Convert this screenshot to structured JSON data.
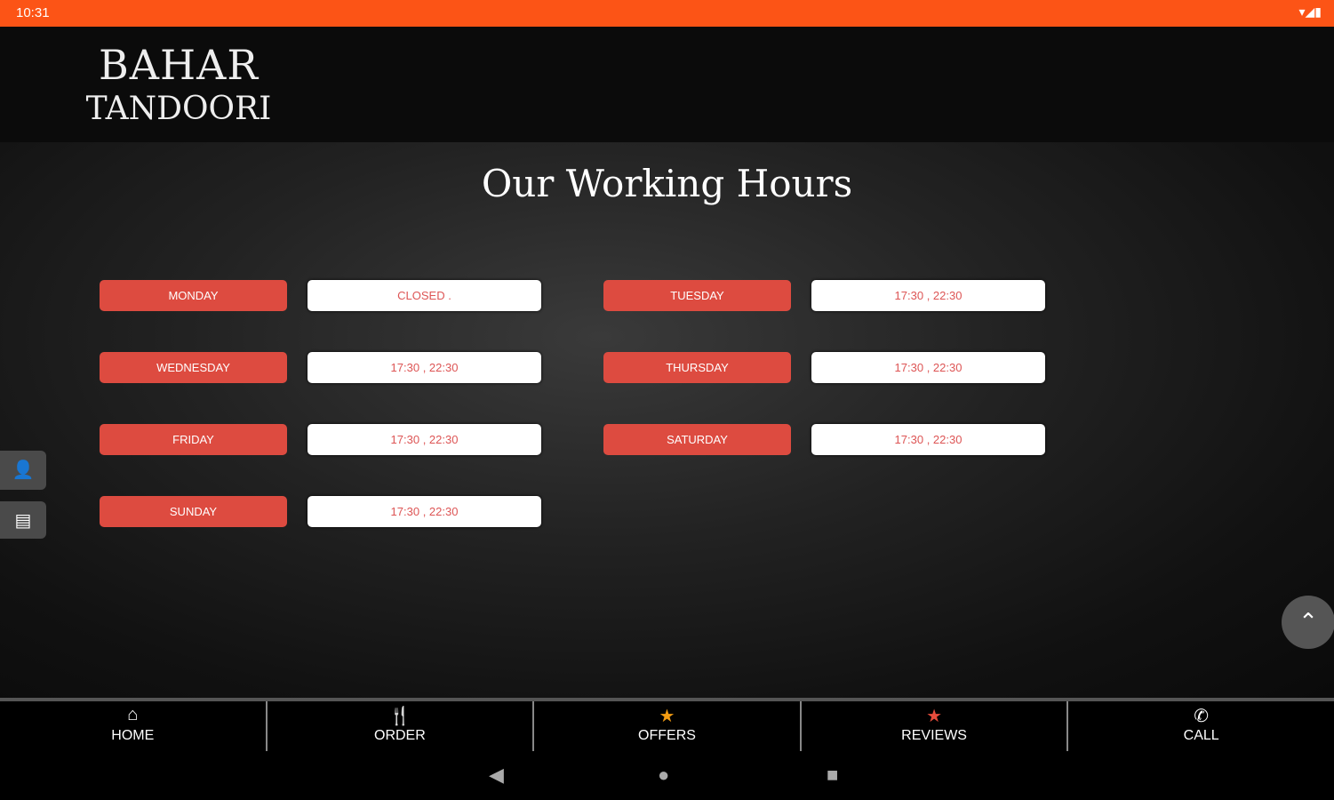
{
  "status": {
    "time": "10:31",
    "icons": "▾◢▮"
  },
  "logo": {
    "line1": "BAHAR",
    "line2": "TANDOORI"
  },
  "title": "Our Working Hours",
  "hours": [
    {
      "day": "MONDAY",
      "hours": "CLOSED ."
    },
    {
      "day": "TUESDAY",
      "hours": "17:30 , 22:30"
    },
    {
      "day": "WEDNESDAY",
      "hours": "17:30 , 22:30"
    },
    {
      "day": "THURSDAY",
      "hours": "17:30 , 22:30"
    },
    {
      "day": "FRIDAY",
      "hours": "17:30 , 22:30"
    },
    {
      "day": "SATURDAY",
      "hours": "17:30 , 22:30"
    },
    {
      "day": "SUNDAY",
      "hours": "17:30 , 22:30"
    }
  ],
  "nav": [
    {
      "label": "HOME",
      "icon": "home-icon",
      "glyph": "⌂",
      "color": "#ffffff"
    },
    {
      "label": "ORDER",
      "icon": "cutlery-icon",
      "glyph": "🍴",
      "color": "#ffffff"
    },
    {
      "label": "OFFERS",
      "icon": "star-icon",
      "glyph": "★",
      "color": "#f39c12"
    },
    {
      "label": "REVIEWS",
      "icon": "star-icon",
      "glyph": "★",
      "color": "#e74c3c"
    },
    {
      "label": "CALL",
      "icon": "phone-icon",
      "glyph": "✆",
      "color": "#ffffff"
    }
  ],
  "colors": {
    "status_bar": "#fc5416",
    "day_bg": "#dd4b40"
  }
}
